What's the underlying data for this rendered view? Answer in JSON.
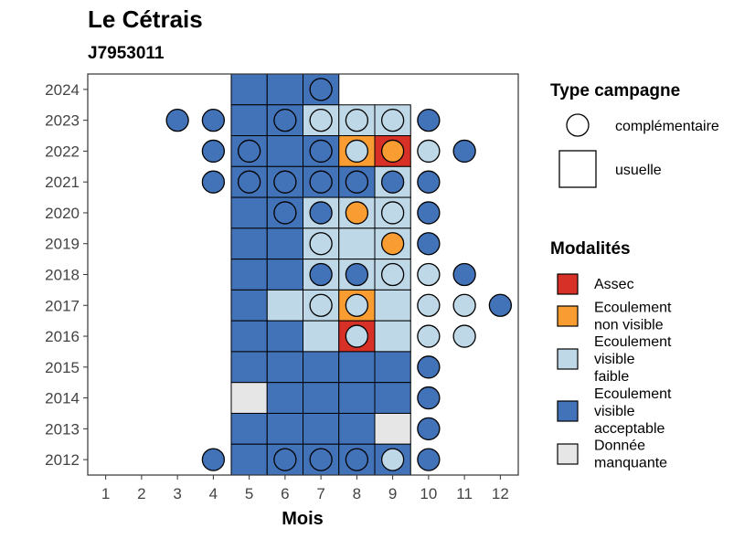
{
  "chart_data": {
    "type": "heatmap",
    "title": "Le Cétrais",
    "subtitle": "J7953011",
    "xlabel": "Mois",
    "ylabel": "",
    "x_ticks": [
      "1",
      "2",
      "3",
      "4",
      "5",
      "6",
      "7",
      "8",
      "9",
      "10",
      "11",
      "12"
    ],
    "y_ticks": [
      "2012",
      "2013",
      "2014",
      "2015",
      "2016",
      "2017",
      "2018",
      "2019",
      "2020",
      "2021",
      "2022",
      "2023",
      "2024"
    ],
    "xlim": [
      0.5,
      12.5
    ],
    "ylim": [
      2011.5,
      2024.5
    ],
    "grid": false,
    "legend_type": {
      "title": "Type campagne",
      "items": [
        {
          "label": "complémentaire",
          "shape": "circle"
        },
        {
          "label": "usuelle",
          "shape": "square"
        }
      ]
    },
    "legend_modalites": {
      "title": "Modalités",
      "items": [
        {
          "key": "assec",
          "lines": [
            "Assec"
          ],
          "color": "#d73027"
        },
        {
          "key": "nonvis",
          "lines": [
            "Ecoulement",
            "non visible"
          ],
          "color": "#f99d33"
        },
        {
          "key": "faible",
          "lines": [
            "Ecoulement",
            "visible",
            "faible"
          ],
          "color": "#bfd8e8"
        },
        {
          "key": "accept",
          "lines": [
            "Ecoulement",
            "visible",
            "acceptable"
          ],
          "color": "#4272b8"
        },
        {
          "key": "manq",
          "lines": [
            "Donnée",
            "manquante"
          ],
          "color": "#e6e6e6"
        }
      ]
    },
    "usuelle": [
      {
        "year": 2024,
        "month": 5,
        "m": "accept"
      },
      {
        "year": 2024,
        "month": 6,
        "m": "accept"
      },
      {
        "year": 2024,
        "month": 7,
        "m": "accept"
      },
      {
        "year": 2023,
        "month": 5,
        "m": "accept"
      },
      {
        "year": 2023,
        "month": 6,
        "m": "accept"
      },
      {
        "year": 2023,
        "month": 7,
        "m": "faible"
      },
      {
        "year": 2023,
        "month": 8,
        "m": "faible"
      },
      {
        "year": 2023,
        "month": 9,
        "m": "faible"
      },
      {
        "year": 2022,
        "month": 5,
        "m": "accept"
      },
      {
        "year": 2022,
        "month": 6,
        "m": "accept"
      },
      {
        "year": 2022,
        "month": 7,
        "m": "accept"
      },
      {
        "year": 2022,
        "month": 8,
        "m": "nonvis"
      },
      {
        "year": 2022,
        "month": 9,
        "m": "assec"
      },
      {
        "year": 2021,
        "month": 5,
        "m": "accept"
      },
      {
        "year": 2021,
        "month": 6,
        "m": "accept"
      },
      {
        "year": 2021,
        "month": 7,
        "m": "accept"
      },
      {
        "year": 2021,
        "month": 8,
        "m": "accept"
      },
      {
        "year": 2021,
        "month": 9,
        "m": "faible"
      },
      {
        "year": 2020,
        "month": 5,
        "m": "accept"
      },
      {
        "year": 2020,
        "month": 6,
        "m": "accept"
      },
      {
        "year": 2020,
        "month": 7,
        "m": "faible"
      },
      {
        "year": 2020,
        "month": 8,
        "m": "faible"
      },
      {
        "year": 2020,
        "month": 9,
        "m": "faible"
      },
      {
        "year": 2019,
        "month": 5,
        "m": "accept"
      },
      {
        "year": 2019,
        "month": 6,
        "m": "accept"
      },
      {
        "year": 2019,
        "month": 7,
        "m": "faible"
      },
      {
        "year": 2019,
        "month": 8,
        "m": "faible"
      },
      {
        "year": 2019,
        "month": 9,
        "m": "faible"
      },
      {
        "year": 2018,
        "month": 5,
        "m": "accept"
      },
      {
        "year": 2018,
        "month": 6,
        "m": "accept"
      },
      {
        "year": 2018,
        "month": 7,
        "m": "faible"
      },
      {
        "year": 2018,
        "month": 8,
        "m": "faible"
      },
      {
        "year": 2018,
        "month": 9,
        "m": "faible"
      },
      {
        "year": 2017,
        "month": 5,
        "m": "accept"
      },
      {
        "year": 2017,
        "month": 6,
        "m": "faible"
      },
      {
        "year": 2017,
        "month": 7,
        "m": "faible"
      },
      {
        "year": 2017,
        "month": 8,
        "m": "nonvis"
      },
      {
        "year": 2017,
        "month": 9,
        "m": "faible"
      },
      {
        "year": 2016,
        "month": 5,
        "m": "accept"
      },
      {
        "year": 2016,
        "month": 6,
        "m": "accept"
      },
      {
        "year": 2016,
        "month": 7,
        "m": "faible"
      },
      {
        "year": 2016,
        "month": 8,
        "m": "assec"
      },
      {
        "year": 2016,
        "month": 9,
        "m": "faible"
      },
      {
        "year": 2015,
        "month": 5,
        "m": "accept"
      },
      {
        "year": 2015,
        "month": 6,
        "m": "accept"
      },
      {
        "year": 2015,
        "month": 7,
        "m": "accept"
      },
      {
        "year": 2015,
        "month": 8,
        "m": "accept"
      },
      {
        "year": 2015,
        "month": 9,
        "m": "accept"
      },
      {
        "year": 2014,
        "month": 5,
        "m": "manq"
      },
      {
        "year": 2014,
        "month": 6,
        "m": "accept"
      },
      {
        "year": 2014,
        "month": 7,
        "m": "accept"
      },
      {
        "year": 2014,
        "month": 8,
        "m": "accept"
      },
      {
        "year": 2014,
        "month": 9,
        "m": "accept"
      },
      {
        "year": 2013,
        "month": 5,
        "m": "accept"
      },
      {
        "year": 2013,
        "month": 6,
        "m": "accept"
      },
      {
        "year": 2013,
        "month": 7,
        "m": "accept"
      },
      {
        "year": 2013,
        "month": 8,
        "m": "accept"
      },
      {
        "year": 2013,
        "month": 9,
        "m": "manq"
      },
      {
        "year": 2012,
        "month": 5,
        "m": "accept"
      },
      {
        "year": 2012,
        "month": 6,
        "m": "accept"
      },
      {
        "year": 2012,
        "month": 7,
        "m": "accept"
      },
      {
        "year": 2012,
        "month": 8,
        "m": "accept"
      },
      {
        "year": 2012,
        "month": 9,
        "m": "accept"
      }
    ],
    "complementaire": [
      {
        "year": 2024,
        "month": 7,
        "m": "accept"
      },
      {
        "year": 2023,
        "month": 3,
        "m": "accept"
      },
      {
        "year": 2023,
        "month": 4,
        "m": "accept"
      },
      {
        "year": 2023,
        "month": 6,
        "m": "accept"
      },
      {
        "year": 2023,
        "month": 7,
        "m": "faible"
      },
      {
        "year": 2023,
        "month": 8,
        "m": "faible"
      },
      {
        "year": 2023,
        "month": 9,
        "m": "faible"
      },
      {
        "year": 2023,
        "month": 10,
        "m": "accept"
      },
      {
        "year": 2022,
        "month": 4,
        "m": "accept"
      },
      {
        "year": 2022,
        "month": 5,
        "m": "accept"
      },
      {
        "year": 2022,
        "month": 7,
        "m": "accept"
      },
      {
        "year": 2022,
        "month": 8,
        "m": "faible"
      },
      {
        "year": 2022,
        "month": 9,
        "m": "nonvis"
      },
      {
        "year": 2022,
        "month": 10,
        "m": "faible"
      },
      {
        "year": 2022,
        "month": 11,
        "m": "accept"
      },
      {
        "year": 2021,
        "month": 4,
        "m": "accept"
      },
      {
        "year": 2021,
        "month": 5,
        "m": "accept"
      },
      {
        "year": 2021,
        "month": 6,
        "m": "accept"
      },
      {
        "year": 2021,
        "month": 7,
        "m": "accept"
      },
      {
        "year": 2021,
        "month": 8,
        "m": "accept"
      },
      {
        "year": 2021,
        "month": 9,
        "m": "accept"
      },
      {
        "year": 2021,
        "month": 10,
        "m": "accept"
      },
      {
        "year": 2020,
        "month": 6,
        "m": "accept"
      },
      {
        "year": 2020,
        "month": 7,
        "m": "accept"
      },
      {
        "year": 2020,
        "month": 8,
        "m": "nonvis"
      },
      {
        "year": 2020,
        "month": 9,
        "m": "faible"
      },
      {
        "year": 2020,
        "month": 10,
        "m": "accept"
      },
      {
        "year": 2019,
        "month": 7,
        "m": "faible"
      },
      {
        "year": 2019,
        "month": 9,
        "m": "nonvis"
      },
      {
        "year": 2019,
        "month": 10,
        "m": "accept"
      },
      {
        "year": 2018,
        "month": 7,
        "m": "accept"
      },
      {
        "year": 2018,
        "month": 8,
        "m": "accept"
      },
      {
        "year": 2018,
        "month": 9,
        "m": "faible"
      },
      {
        "year": 2018,
        "month": 10,
        "m": "faible"
      },
      {
        "year": 2018,
        "month": 11,
        "m": "accept"
      },
      {
        "year": 2017,
        "month": 7,
        "m": "faible"
      },
      {
        "year": 2017,
        "month": 8,
        "m": "faible"
      },
      {
        "year": 2017,
        "month": 10,
        "m": "faible"
      },
      {
        "year": 2017,
        "month": 11,
        "m": "faible"
      },
      {
        "year": 2017,
        "month": 12,
        "m": "accept"
      },
      {
        "year": 2016,
        "month": 8,
        "m": "faible"
      },
      {
        "year": 2016,
        "month": 10,
        "m": "faible"
      },
      {
        "year": 2016,
        "month": 11,
        "m": "faible"
      },
      {
        "year": 2015,
        "month": 10,
        "m": "accept"
      },
      {
        "year": 2014,
        "month": 10,
        "m": "accept"
      },
      {
        "year": 2013,
        "month": 10,
        "m": "accept"
      },
      {
        "year": 2012,
        "month": 4,
        "m": "accept"
      },
      {
        "year": 2012,
        "month": 6,
        "m": "accept"
      },
      {
        "year": 2012,
        "month": 7,
        "m": "accept"
      },
      {
        "year": 2012,
        "month": 8,
        "m": "accept"
      },
      {
        "year": 2012,
        "month": 9,
        "m": "faible"
      },
      {
        "year": 2012,
        "month": 10,
        "m": "accept"
      }
    ]
  }
}
